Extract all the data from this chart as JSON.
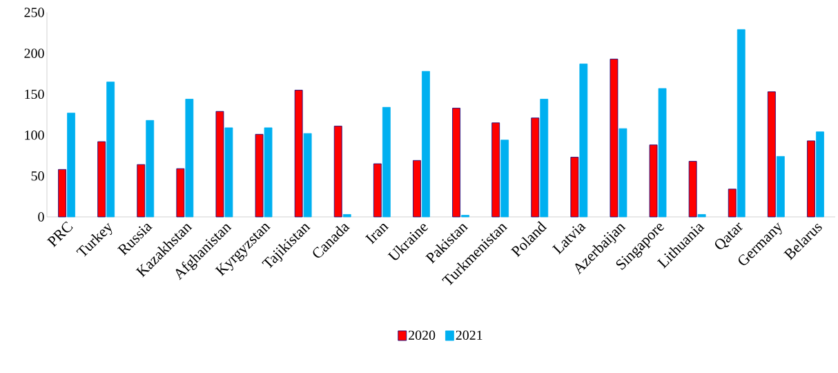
{
  "chart_data": {
    "type": "bar",
    "categories": [
      "PRC",
      "Turkey",
      "Russia",
      "Kazakhstan",
      "Afghanistan",
      "Kyrgyzstan",
      "Tajikistan",
      "Canada",
      "Iran",
      "Ukraine",
      "Pakistan",
      "Turkmenistan",
      "Poland",
      "Latvia",
      "Azerbaijan",
      "Singapore",
      "Lithuania",
      "Qatar",
      "Germany",
      "Belarus"
    ],
    "series": [
      {
        "name": "2020",
        "color": "#ff0000",
        "values": [
          58,
          92,
          64,
          59,
          129,
          101,
          155,
          111,
          65,
          69,
          133,
          115,
          121,
          73,
          193,
          88,
          68,
          34,
          153,
          93
        ]
      },
      {
        "name": "2021",
        "color": "#00b0f0",
        "values": [
          127,
          165,
          118,
          144,
          109,
          109,
          102,
          3,
          134,
          178,
          2,
          94,
          144,
          187,
          108,
          157,
          3,
          229,
          74,
          104
        ]
      }
    ],
    "ylim": [
      0,
      250
    ],
    "yticks": [
      0,
      50,
      100,
      150,
      200,
      250
    ],
    "grid": false,
    "legend": "bottom"
  }
}
